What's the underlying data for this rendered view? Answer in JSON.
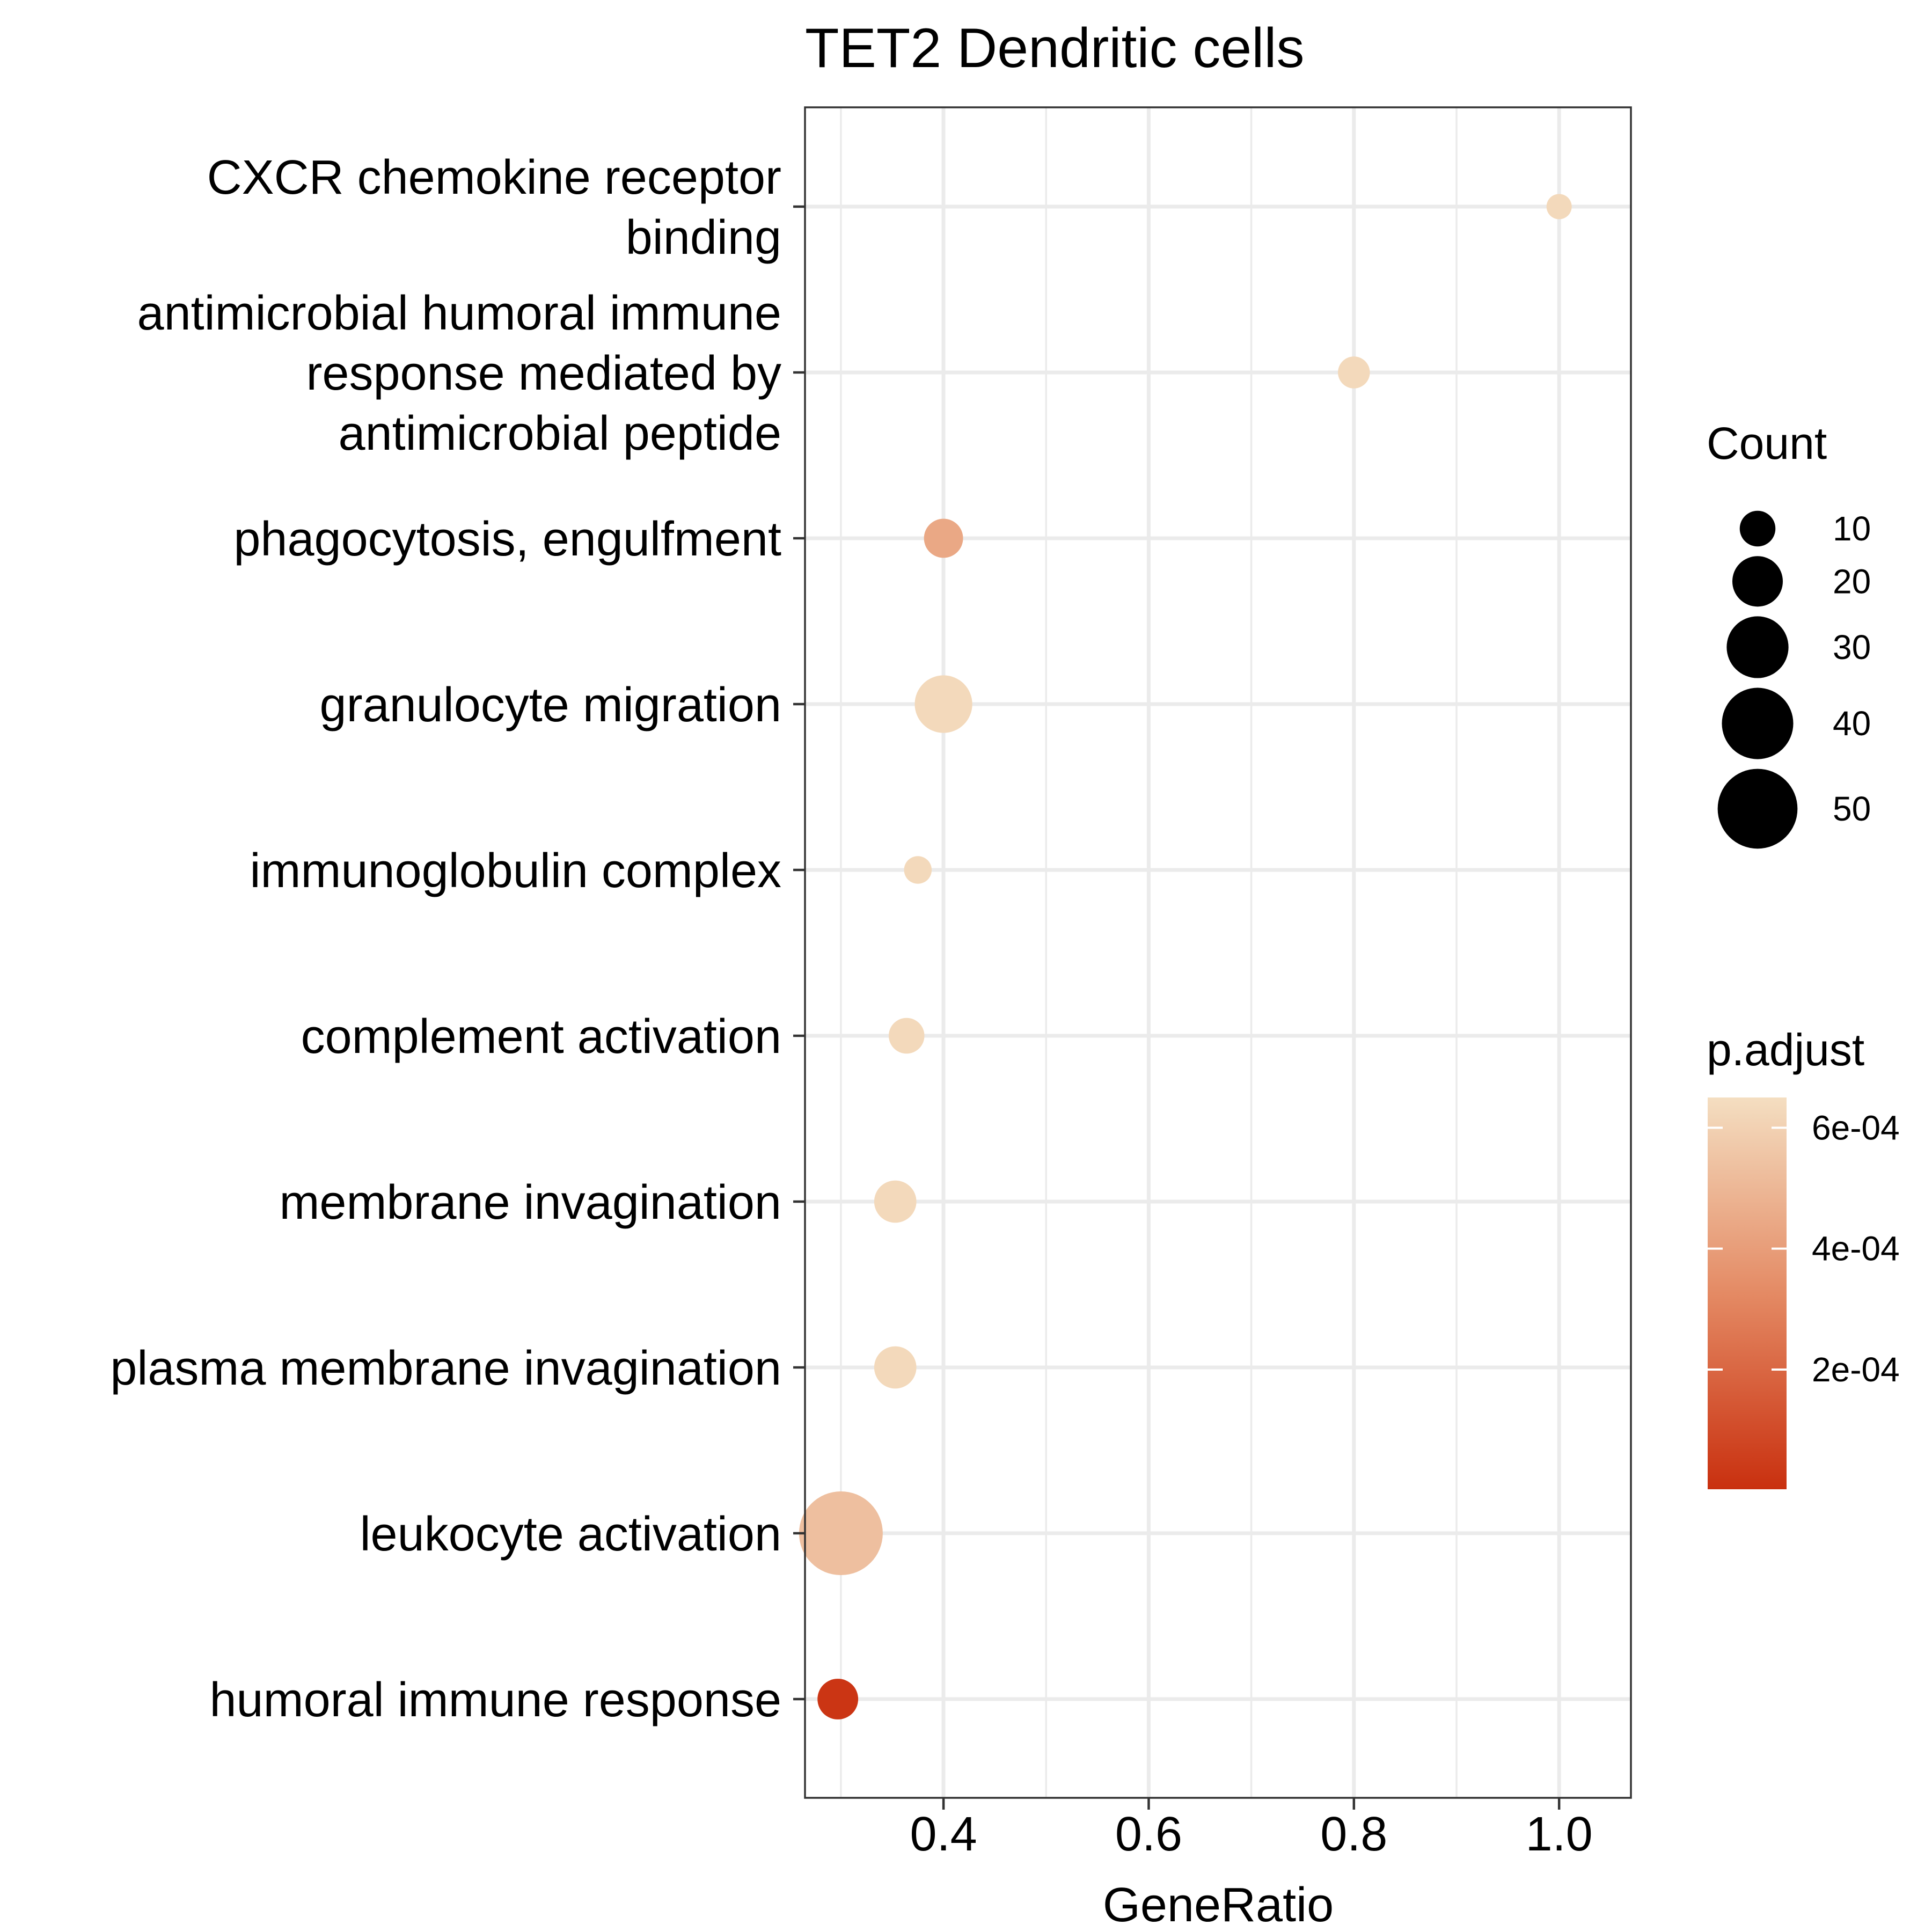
{
  "chart_data": {
    "type": "scatter",
    "title": "TET2 Dendritic cells",
    "xlabel": "GeneRatio",
    "ylabel": "",
    "xlim": [
      0.265,
      1.07
    ],
    "x_ticks": [
      0.4,
      0.6,
      0.8,
      1.0
    ],
    "x_tick_labels": [
      "0.4",
      "0.6",
      "0.8",
      "1.0"
    ],
    "x_minor_ticks": [
      0.3,
      0.5,
      0.7,
      0.9
    ],
    "grid": true,
    "categories": [
      [
        "CXCR chemokine receptor",
        "binding"
      ],
      [
        "antimicrobial humoral immune",
        "response mediated by",
        "antimicrobial peptide"
      ],
      [
        "phagocytosis, engulfment"
      ],
      [
        "granulocyte migration"
      ],
      [
        "immunoglobulin complex"
      ],
      [
        "complement activation"
      ],
      [
        "membrane invagination"
      ],
      [
        "plasma membrane invagination"
      ],
      [
        "leukocyte activation"
      ],
      [
        "humoral immune response"
      ]
    ],
    "points": [
      {
        "category_index": 0,
        "x": 1.0,
        "count": 5,
        "p_adjust": 0.00063
      },
      {
        "category_index": 1,
        "x": 0.8,
        "count": 8,
        "p_adjust": 0.00063
      },
      {
        "category_index": 2,
        "x": 0.4,
        "count": 12,
        "p_adjust": 0.00044
      },
      {
        "category_index": 3,
        "x": 0.4,
        "count": 26,
        "p_adjust": 0.00063
      },
      {
        "category_index": 4,
        "x": 0.375,
        "count": 6,
        "p_adjust": 0.00063
      },
      {
        "category_index": 5,
        "x": 0.364,
        "count": 10,
        "p_adjust": 0.00063
      },
      {
        "category_index": 6,
        "x": 0.353,
        "count": 14,
        "p_adjust": 0.00063
      },
      {
        "category_index": 7,
        "x": 0.353,
        "count": 14,
        "p_adjust": 0.00063
      },
      {
        "category_index": 8,
        "x": 0.3,
        "count": 55,
        "p_adjust": 0.00053
      },
      {
        "category_index": 9,
        "x": 0.297,
        "count": 13,
        "p_adjust": 2e-05
      }
    ],
    "size_legend": {
      "title": "Count",
      "values": [
        10,
        20,
        30,
        40,
        50
      ],
      "labels": [
        "10",
        "20",
        "30",
        "40",
        "50"
      ]
    },
    "color_legend": {
      "title": "p.adjust",
      "min": 2e-06,
      "max": 0.00065,
      "ticks": [
        0.0002,
        0.0004,
        0.0006
      ],
      "tick_labels": [
        "2e-04",
        "4e-04",
        "6e-04"
      ],
      "low_color": "#C9300F",
      "mid_color": "#E48A64",
      "high_color": "#F4DEC1"
    },
    "legend_position": "right"
  }
}
